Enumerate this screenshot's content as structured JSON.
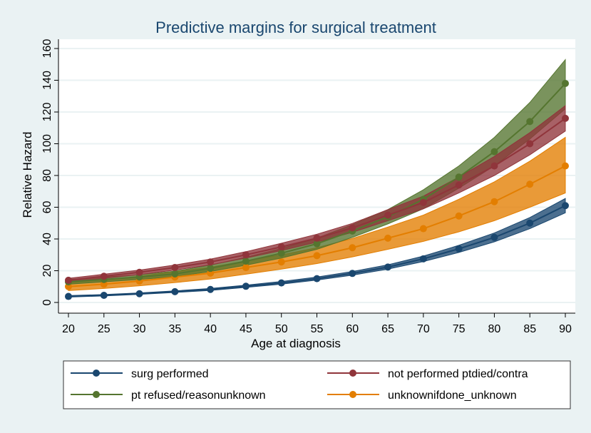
{
  "chart_data": {
    "type": "line",
    "title": "Predictive margins for surgical treatment",
    "xlabel": "Age at diagnosis",
    "ylabel": "Relative Hazard",
    "xlim": [
      20,
      90
    ],
    "ylim": [
      0,
      160
    ],
    "x": [
      20,
      25,
      30,
      35,
      40,
      45,
      50,
      55,
      60,
      65,
      70,
      75,
      80,
      85,
      90
    ],
    "xticks": [
      "20",
      "25",
      "30",
      "35",
      "40",
      "45",
      "50",
      "55",
      "60",
      "65",
      "70",
      "75",
      "80",
      "85",
      "90"
    ],
    "yticks": [
      "0",
      "20",
      "40",
      "60",
      "80",
      "100",
      "120",
      "140",
      "160"
    ],
    "grid": true,
    "legend_position": "bottom",
    "series": [
      {
        "name": "surg performed",
        "color": "#1a476f",
        "values": [
          3.8,
          4.5,
          5.5,
          6.8,
          8.2,
          10.2,
          12.3,
          15,
          18.3,
          22.3,
          27.5,
          33.8,
          41,
          50,
          61
        ],
        "lower": [
          3.4,
          4.1,
          5.1,
          6.3,
          7.6,
          9.5,
          11.5,
          14.1,
          17.2,
          21,
          25.8,
          31.5,
          38.2,
          46.5,
          56.5
        ],
        "upper": [
          4.3,
          5,
          6,
          7.3,
          8.8,
          10.9,
          13.2,
          16,
          19.5,
          23.7,
          29.2,
          36,
          43.8,
          53.5,
          65.5
        ]
      },
      {
        "name": "not performed ptdied/contra",
        "color": "#90353b",
        "values": [
          14,
          16.5,
          19,
          22,
          25.5,
          30,
          35,
          40.5,
          47,
          55,
          63,
          74,
          86,
          100,
          116
        ],
        "lower": [
          12.8,
          15.2,
          17.6,
          20.4,
          23.7,
          28,
          32.7,
          38,
          44.2,
          51.5,
          59,
          69,
          80,
          93,
          108
        ],
        "upper": [
          15.2,
          17.8,
          20.4,
          23.6,
          27.3,
          32,
          37.3,
          43,
          49.8,
          58.5,
          67,
          79,
          92,
          107,
          124
        ]
      },
      {
        "name": "pt refused/reasonunknown",
        "color": "#55752f",
        "values": [
          13,
          14.5,
          16,
          18,
          21.5,
          26,
          31,
          37,
          45,
          54,
          65,
          79,
          95,
          114,
          138
        ],
        "lower": [
          11.5,
          13,
          14.5,
          16.3,
          19.5,
          23.5,
          28,
          33.5,
          41,
          49.5,
          59,
          72,
          86,
          103,
          122
        ],
        "upper": [
          14.5,
          16,
          17.5,
          19.7,
          23.5,
          28.5,
          34,
          40.5,
          49,
          58.5,
          71,
          86,
          104,
          126,
          153
        ]
      },
      {
        "name": "unknownifdone_unknown",
        "color": "#e37e00",
        "values": [
          10,
          11.5,
          13.5,
          16,
          18.5,
          22,
          25.5,
          29.5,
          34.5,
          40.5,
          46.5,
          54.5,
          63.5,
          74.5,
          86
        ],
        "lower": [
          7.5,
          8.8,
          10.5,
          12.5,
          14.8,
          17.8,
          21,
          24.5,
          28.7,
          33.5,
          38.5,
          44.5,
          51.5,
          60,
          69
        ],
        "upper": [
          12.5,
          14.2,
          16.5,
          19.5,
          22.2,
          26.2,
          30,
          34.5,
          40.3,
          47.5,
          55,
          65,
          76,
          89,
          104
        ]
      }
    ]
  }
}
